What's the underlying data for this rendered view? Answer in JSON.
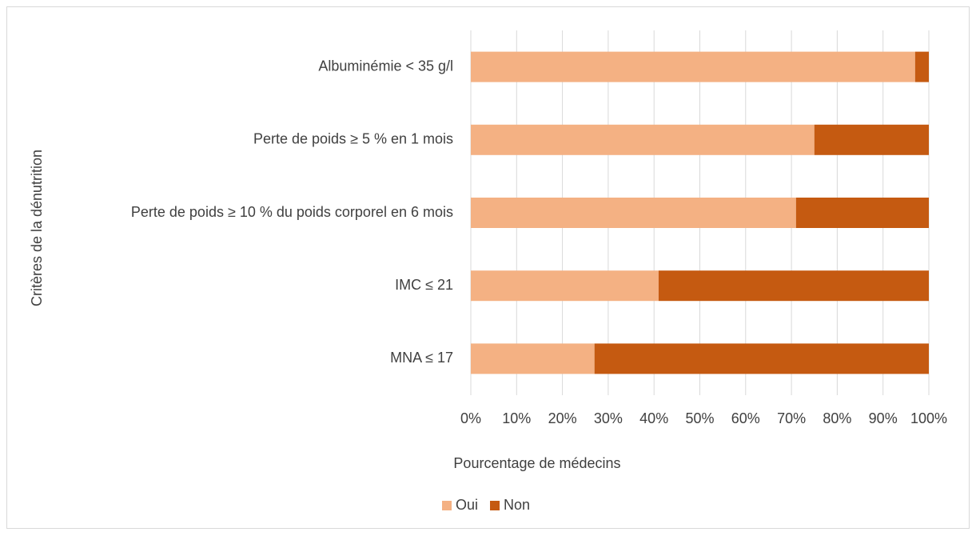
{
  "chart_data": {
    "type": "stacked-barh",
    "x_label": "Pourcentage de médecins",
    "y_label": "Critères  de la dénutrition",
    "categories": [
      "Albuminémie < 35 g/l",
      "Perte de poids ≥ 5 % en 1 mois",
      "Perte de poids ≥ 10 % du poids corporel en 6 mois",
      "IMC ≤ 21",
      "MNA ≤ 17"
    ],
    "series": [
      {
        "name": "Oui",
        "color": "#f4b183",
        "values": [
          97,
          75,
          71,
          41,
          27
        ]
      },
      {
        "name": "Non",
        "color": "#c55a11",
        "values": [
          3,
          25,
          29,
          59,
          73
        ]
      }
    ],
    "xlim": [
      0,
      100
    ],
    "xticks": [
      {
        "value": 0,
        "label": "0%"
      },
      {
        "value": 10,
        "label": "10%"
      },
      {
        "value": 20,
        "label": "20%"
      },
      {
        "value": 30,
        "label": "30%"
      },
      {
        "value": 40,
        "label": "40%"
      },
      {
        "value": 50,
        "label": "50%"
      },
      {
        "value": 60,
        "label": "60%"
      },
      {
        "value": 70,
        "label": "70%"
      },
      {
        "value": 80,
        "label": "80%"
      },
      {
        "value": 90,
        "label": "90%"
      },
      {
        "value": 100,
        "label": "100%"
      }
    ],
    "grid": true,
    "legend": "bottom"
  }
}
